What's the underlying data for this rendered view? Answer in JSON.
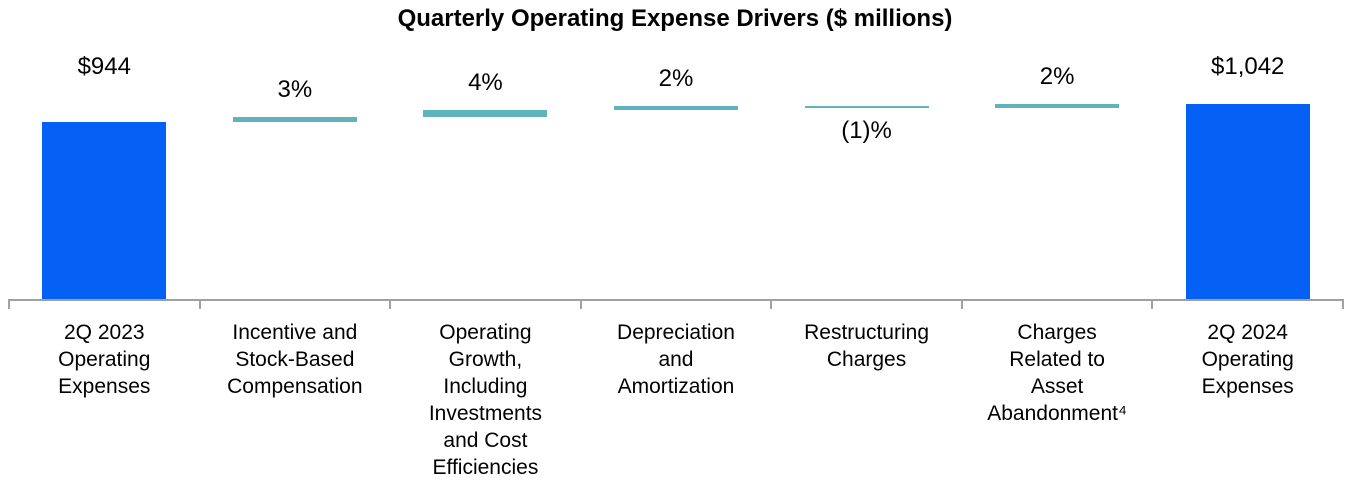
{
  "chart_data": {
    "type": "bar",
    "subtype": "waterfall",
    "title": "Quarterly Operating Expense Drivers ($ millions)",
    "xlabel": "",
    "ylabel": "",
    "grid": false,
    "legend": "none",
    "start_value": 944,
    "end_value": 1042,
    "categories": [
      "2Q 2023\nOperating\nExpenses",
      "Incentive and\nStock-Based\nCompensation",
      "Operating\nGrowth,\nIncluding\nInvestments\nand Cost\nEfficiencies",
      "Depreciation\nand\nAmortization",
      "Restructuring\nCharges",
      "Charges\nRelated to\nAsset\nAbandonment⁴",
      "2Q 2024\nOperating\nExpenses"
    ],
    "bars": [
      {
        "kind": "total",
        "value": 944,
        "label": "$944"
      },
      {
        "kind": "delta",
        "pct": 3,
        "label": "3%"
      },
      {
        "kind": "delta",
        "pct": 4,
        "label": "4%"
      },
      {
        "kind": "delta",
        "pct": 2,
        "label": "2%"
      },
      {
        "kind": "delta",
        "pct": -1,
        "label": "(1)%"
      },
      {
        "kind": "delta",
        "pct": 2,
        "label": "2%"
      },
      {
        "kind": "total",
        "value": 1042,
        "label": "$1,042"
      }
    ],
    "colors": {
      "total_bar": "#0560F5",
      "delta_bar": "#5FB3BB",
      "axis_line": "#A0A0A0",
      "label_text": "#000000"
    }
  }
}
